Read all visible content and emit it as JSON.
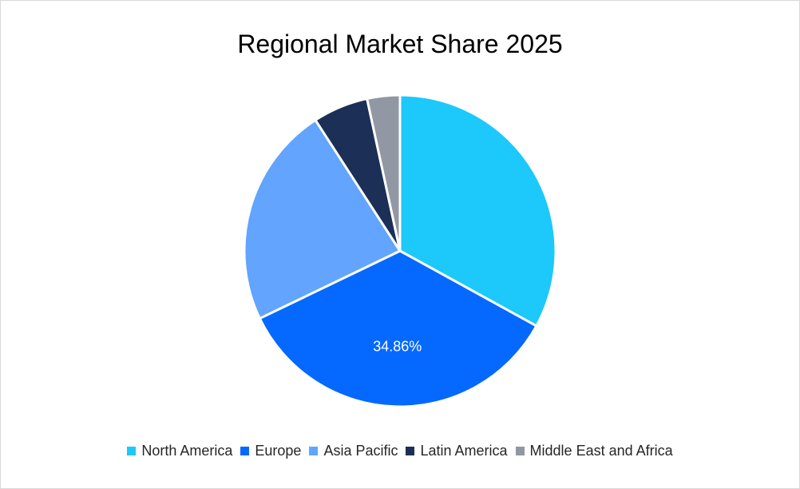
{
  "chart_data": {
    "type": "pie",
    "title": "Regional Market Share 2025",
    "categories": [
      "North America",
      "Europe",
      "Asia Pacific",
      "Latin America",
      "Middle East and Africa"
    ],
    "values": [
      33.0,
      34.86,
      23.0,
      5.74,
      3.4
    ],
    "colors": [
      "#1DC8FB",
      "#0569FF",
      "#62A4FE",
      "#1B2F57",
      "#9198A3"
    ],
    "data_labels": [
      "",
      "34.86%",
      "",
      "",
      ""
    ],
    "legend_position": "bottom",
    "start_angle_deg": 0,
    "direction": "clockwise"
  }
}
